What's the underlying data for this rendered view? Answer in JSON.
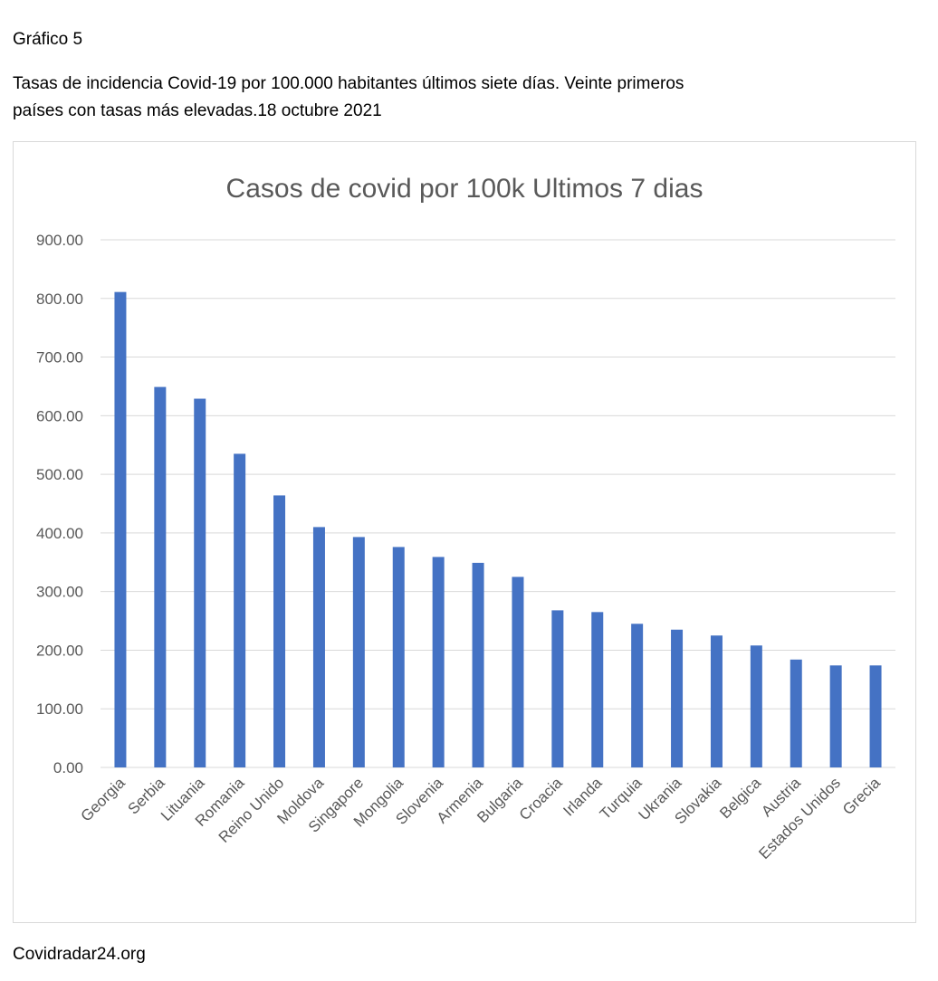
{
  "document": {
    "label": "Gráfico 5",
    "caption_line1": "Tasas de incidencia Covid-19 por 100.000 habitantes últimos siete días. Veinte primeros",
    "caption_line2": "países con tasas más elevadas.18 octubre 2021",
    "source": "Covidradar24.org"
  },
  "colors": {
    "bar": "#4472C4",
    "grid": "#d9d9d9",
    "text": "#595959"
  },
  "chart_data": {
    "type": "bar",
    "title": "Casos de covid por  100k Ultimos 7 dias",
    "xlabel": "",
    "ylabel": "",
    "ylim": [
      0,
      900
    ],
    "yticks": [
      "0.00",
      "100.00",
      "200.00",
      "300.00",
      "400.00",
      "500.00",
      "600.00",
      "700.00",
      "800.00",
      "900.00"
    ],
    "grid": true,
    "legend": "none",
    "categories": [
      "Georgia",
      "Serbia",
      "Lituania",
      "Romania",
      "Reino Unido",
      "Moldova",
      "Singapore",
      "Mongolia",
      "Slovenia",
      "Armenia",
      "Bulgaria",
      "Croacia",
      "Irlanda",
      "Turquia",
      "Ukrania",
      "Slovakia",
      "Belgica",
      "Austria",
      "Estados Unidos",
      "Grecia"
    ],
    "values": [
      811,
      649,
      629,
      535,
      464,
      410,
      393,
      376,
      359,
      349,
      325,
      268,
      265,
      245,
      235,
      225,
      208,
      184,
      174,
      174
    ]
  }
}
